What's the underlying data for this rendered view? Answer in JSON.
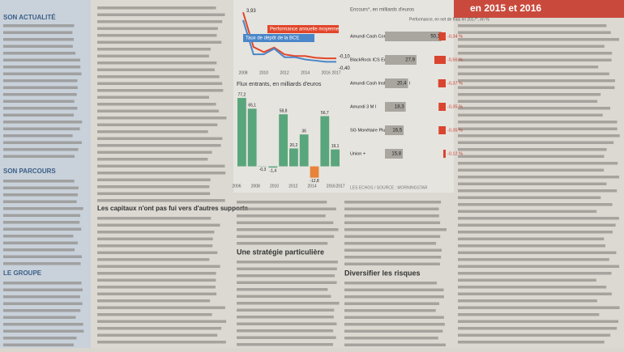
{
  "left_column": {
    "headings": [
      "SON ACTUALITÉ",
      "SON PARCOURS",
      "LE GROUPE"
    ]
  },
  "right_column": {
    "heading": "en 2015 et 2016"
  },
  "body": {
    "headings": [
      "Les capitaux n'ont pas fui vers d'autres supports",
      "Une stratégie particulière",
      "Diversifier les risques"
    ]
  },
  "line_chart": {
    "type": "line",
    "x": [
      2008,
      2009,
      2010,
      2011,
      2012,
      2013,
      2014,
      2015,
      2016,
      2017
    ],
    "xticks": [
      2008,
      2010,
      2012,
      2014,
      2016,
      2017
    ],
    "ylim": [
      -0.8,
      4.3
    ],
    "series": [
      {
        "name": "Performance annuelle moyenne",
        "color": "#e2462a",
        "values": [
          3.93,
          0.9,
          0.45,
          0.85,
          0.25,
          0.1,
          0.1,
          -0.05,
          -0.1,
          -0.1
        ],
        "value_labels": [
          "3,93",
          null,
          null,
          null,
          null,
          null,
          null,
          null,
          null,
          "-0,10"
        ]
      },
      {
        "name": "Taux de dépôt de la BCE",
        "color": "#4a86c8",
        "values": [
          3.25,
          0.25,
          0.25,
          0.75,
          0,
          0,
          -0.2,
          -0.3,
          -0.4,
          -0.4
        ],
        "value_labels": [
          null,
          null,
          null,
          null,
          null,
          null,
          null,
          null,
          null,
          "-0,40"
        ]
      }
    ]
  },
  "bar_chart": {
    "type": "bar",
    "title": "Flux entrants, en milliards d'euros",
    "values": [
      77.2,
      65.1,
      -0.3,
      -1.4,
      58.8,
      20.2,
      36,
      -12.8,
      56.7,
      19.1
    ],
    "value_labels": [
      "77,2",
      "65,1",
      "-0,3",
      "-1,4",
      "58,8",
      "20,2",
      "36",
      "-12,8",
      "56,7",
      "19,1"
    ],
    "colors": [
      "#5aa67c",
      "#5aa67c",
      "#5aa67c",
      "#5aa67c",
      "#5aa67c",
      "#5aa67c",
      "#5aa67c",
      "#e8833a",
      "#5aa67c",
      "#5aa67c"
    ],
    "xticks": [
      2006,
      2008,
      2010,
      2012,
      2014,
      2016,
      2017
    ],
    "ylim": [
      -15,
      80
    ]
  },
  "table": {
    "headers": [
      "Encours*, en milliards d'euros",
      "Performance, en net de frais en 2017*, en %"
    ],
    "rows": [
      {
        "name": "Amundi Cash Corporate IC",
        "encours": 50.1,
        "encours_label": "50,1",
        "perf": -0.34,
        "perf_label": "-0,34 %"
      },
      {
        "name": "BlackRock ICS Euro Liq EUR Acc",
        "encours": 27.9,
        "encours_label": "27,9",
        "perf": -0.56,
        "perf_label": "-0,56 %"
      },
      {
        "name": "Amundi Cash Institutions SRI I",
        "encours": 20.4,
        "encours_label": "20,4",
        "perf": -0.37,
        "perf_label": "-0,37 %"
      },
      {
        "name": "Amundi 3 M I",
        "encours": 18.3,
        "encours_label": "18,3",
        "perf": -0.35,
        "perf_label": "-0,35 %"
      },
      {
        "name": "SG Monétaire Plus I",
        "encours": 16.5,
        "encours_label": "16,5",
        "perf": -0.35,
        "perf_label": "-0,35 %"
      },
      {
        "name": "Union +",
        "encours": 15.8,
        "encours_label": "15,8",
        "perf": -0.12,
        "perf_label": "-0,12 %"
      }
    ],
    "source": "LES ECHOS / SOURCE : MORNINGSTAR"
  }
}
